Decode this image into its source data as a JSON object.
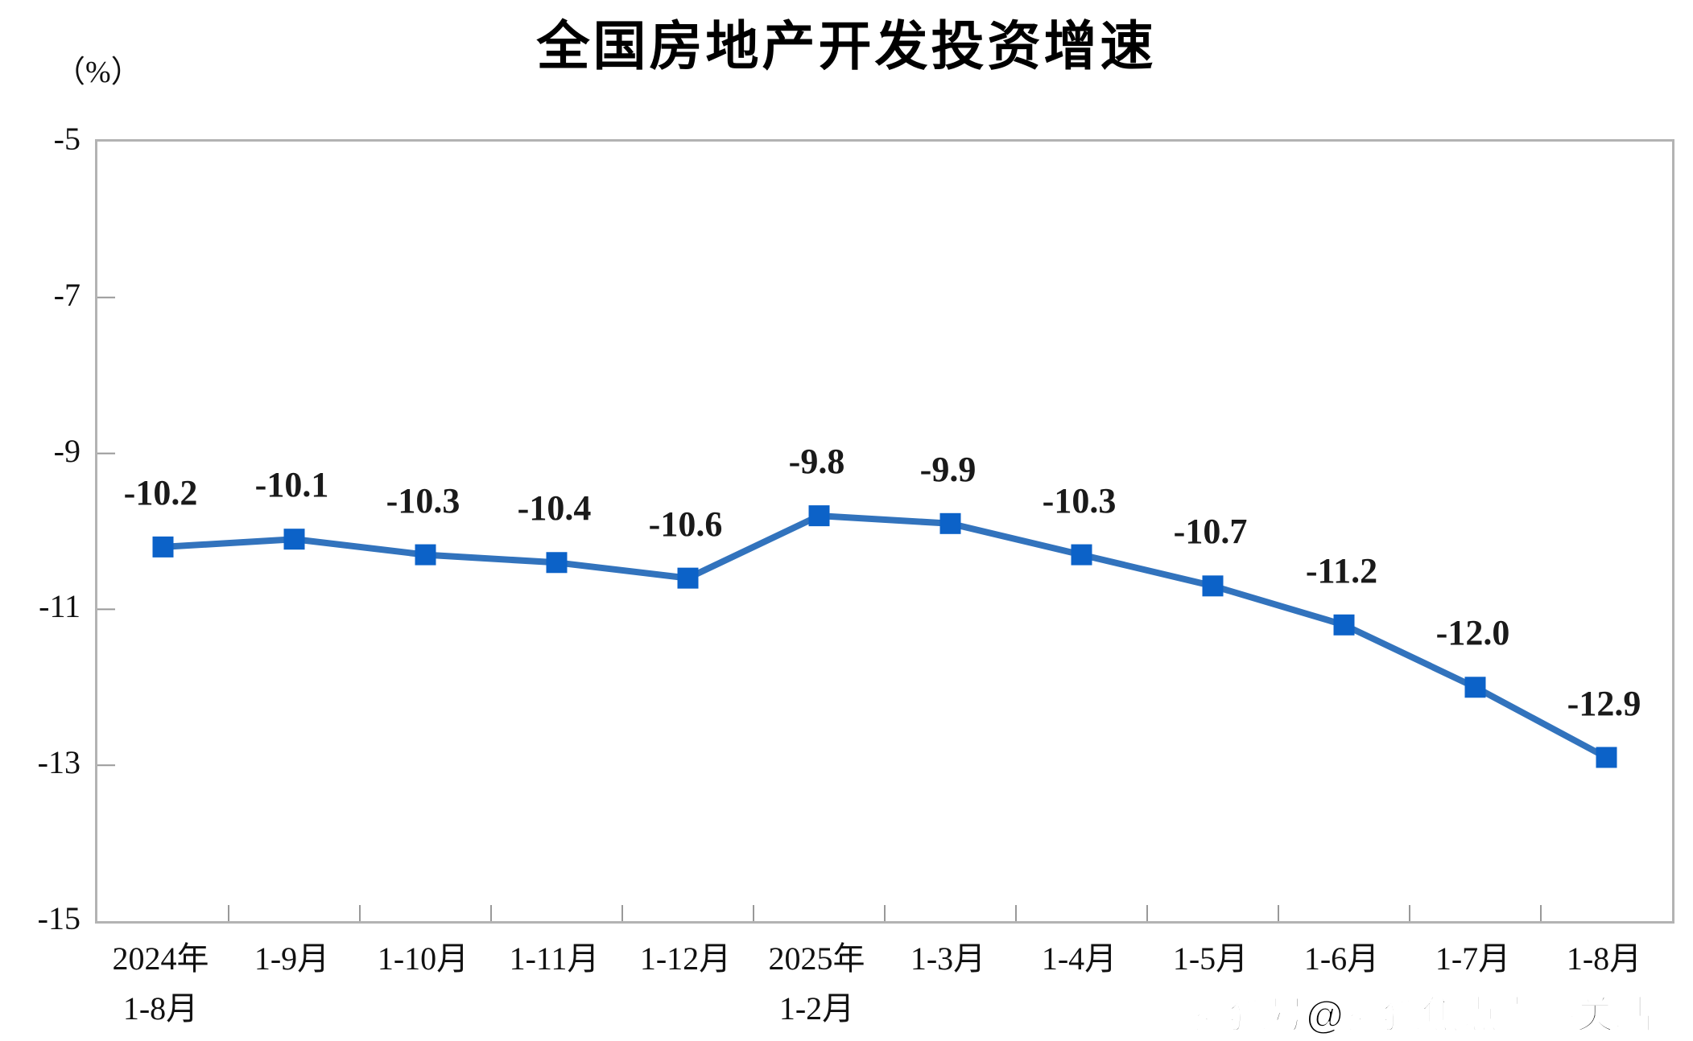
{
  "title": "全国房地产开发投资增速",
  "unit_label": "（%）",
  "watermark": "搜狐号@搜狐焦点嘉峪关站",
  "colors": {
    "line": "#3273BD",
    "marker": "#0C62C8",
    "plot_border": "#b3b3b3",
    "tick": "#999999",
    "axis_text": "#111111",
    "data_label_text": "#1a1a1a",
    "title_text": "#000000"
  },
  "chart_data": {
    "type": "line",
    "title": "全国房地产开发投资增速",
    "ylabel": "（%）",
    "xlabel": "",
    "ylim": [
      -15,
      -5
    ],
    "y_ticks": [
      -5,
      -7,
      -9,
      -11,
      -13,
      -15
    ],
    "y_tick_labels": [
      "-5",
      "-7",
      "-9",
      "-11",
      "-13",
      "-15"
    ],
    "grid": false,
    "legend_position": "none",
    "marker_shape": "square",
    "categories": [
      "2024年1-8月",
      "1-9月",
      "1-10月",
      "1-11月",
      "1-12月",
      "2025年1-2月",
      "1-3月",
      "1-4月",
      "1-5月",
      "1-6月",
      "1-7月",
      "1-8月"
    ],
    "category_lines": [
      [
        "2024年",
        "1-8月"
      ],
      [
        "1-9月"
      ],
      [
        "1-10月"
      ],
      [
        "1-11月"
      ],
      [
        "1-12月"
      ],
      [
        "2025年",
        "1-2月"
      ],
      [
        "1-3月"
      ],
      [
        "1-4月"
      ],
      [
        "1-5月"
      ],
      [
        "1-6月"
      ],
      [
        "1-7月"
      ],
      [
        "1-8月"
      ]
    ],
    "series": [
      {
        "name": "全国房地产开发投资增速",
        "values": [
          -10.2,
          -10.1,
          -10.3,
          -10.4,
          -10.6,
          -9.8,
          -9.9,
          -10.3,
          -10.7,
          -11.2,
          -12.0,
          -12.9
        ]
      }
    ],
    "data_labels": [
      "-10.2",
      "-10.1",
      "-10.3",
      "-10.4",
      "-10.6",
      "-9.8",
      "-9.9",
      "-10.3",
      "-10.7",
      "-11.2",
      "-12.0",
      "-12.9"
    ]
  }
}
